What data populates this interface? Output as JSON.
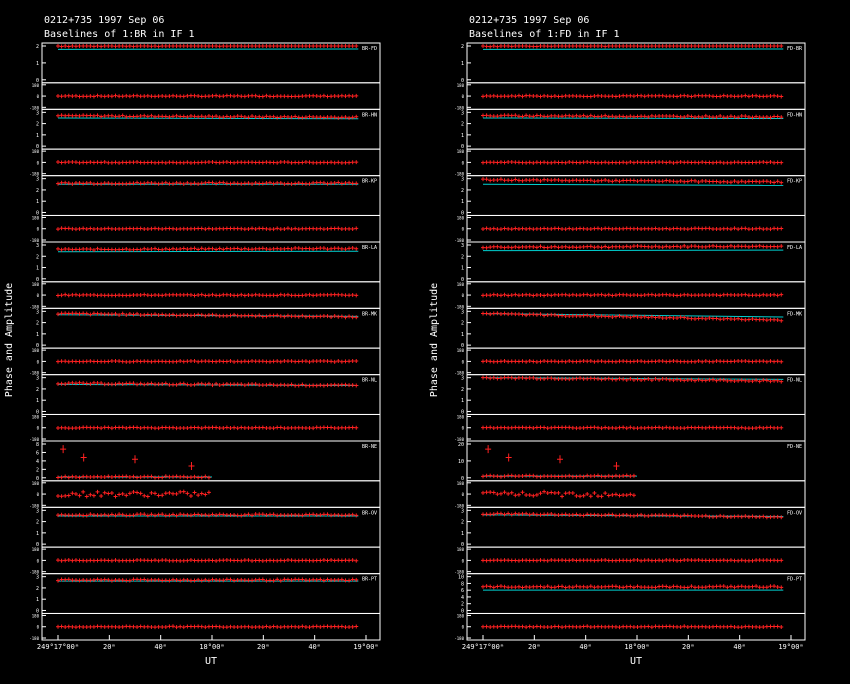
{
  "chart_data": [
    {
      "type": "line",
      "title": "0212+735  1997 Sep 06",
      "subtitle": "Baselines of 1:BR in IF 1",
      "ylabel": "Phase and Amplitude",
      "xlabel": "UT",
      "x_ticks": [
        "249°17°00ᵐ",
        "20ᵐ",
        "40ᵐ",
        "18°00ᵐ",
        "20ᵐ",
        "40ᵐ",
        "19°00ᵐ"
      ],
      "baselines": [
        {
          "label": "BR-FD",
          "amp_ticks": [
            "2",
            "1",
            "0"
          ],
          "phase_ticks": [
            "180",
            "0",
            "-180"
          ],
          "amp": 2.0,
          "amp_ref": 1.8,
          "amp_trend": 0.05,
          "gap": null
        },
        {
          "label": "BR-HN",
          "amp_ticks": [
            "3",
            "2",
            "1",
            "0"
          ],
          "phase_ticks": [
            "180",
            "0",
            "-180"
          ],
          "amp": 2.7,
          "amp_ref": 2.5,
          "amp_trend": -0.15,
          "gap": null
        },
        {
          "label": "BR-KP",
          "amp_ticks": [
            "3",
            "2",
            "1",
            "0"
          ],
          "phase_ticks": [
            "180",
            "0",
            "-180"
          ],
          "amp": 2.6,
          "amp_ref": 2.5,
          "amp_trend": 0.0,
          "gap": null
        },
        {
          "label": "BR-LA",
          "amp_ticks": [
            "3",
            "2",
            "1",
            "0"
          ],
          "phase_ticks": [
            "180",
            "0",
            "-180"
          ],
          "amp": 2.6,
          "amp_ref": 2.4,
          "amp_trend": 0.1,
          "gap": null
        },
        {
          "label": "BR-MK",
          "amp_ticks": [
            "3",
            "2",
            "1",
            "0"
          ],
          "phase_ticks": [
            "180",
            "0",
            "-180"
          ],
          "amp": 2.8,
          "amp_ref": 2.7,
          "amp_trend": -0.3,
          "gap": null
        },
        {
          "label": "BR-NL",
          "amp_ticks": [
            "3",
            "2",
            "1",
            "0"
          ],
          "phase_ticks": [
            "180",
            "0",
            "-180"
          ],
          "amp": 2.5,
          "amp_ref": 2.4,
          "amp_trend": -0.2,
          "gap": null
        },
        {
          "label": "BR-NE",
          "amp_ticks": [
            "8",
            "6",
            "4",
            "2",
            "0"
          ],
          "phase_ticks": [
            "180",
            "0",
            "-180"
          ],
          "amp": 0.2,
          "amp_ref": 0.2,
          "amp_trend": 0.0,
          "gap": "after_18h"
        },
        {
          "label": "BR-OV",
          "amp_ticks": [
            "3",
            "2",
            "1",
            "0"
          ],
          "phase_ticks": [
            "180",
            "0",
            "-180"
          ],
          "amp": 2.6,
          "amp_ref": 2.5,
          "amp_trend": 0.0,
          "gap": null
        },
        {
          "label": "BR-PT",
          "amp_ticks": [
            "3",
            "2",
            "1",
            "0"
          ],
          "phase_ticks": [
            "180",
            "0",
            "-180"
          ],
          "amp": 2.7,
          "amp_ref": 2.6,
          "amp_trend": 0.0,
          "gap": null
        }
      ]
    },
    {
      "type": "line",
      "title": "0212+735  1997 Sep 06",
      "subtitle": "Baselines of 1:FD in IF 1",
      "ylabel": "Phase and Amplitude",
      "xlabel": "UT",
      "x_ticks": [
        "249°17°00ᵐ",
        "20ᵐ",
        "40ᵐ",
        "18°00ᵐ",
        "20ᵐ",
        "40ᵐ",
        "19°00ᵐ"
      ],
      "baselines": [
        {
          "label": "FD-BR",
          "amp_ticks": [
            "2",
            "1",
            "0"
          ],
          "phase_ticks": [
            "180",
            "0",
            "-180"
          ],
          "amp": 2.0,
          "amp_ref": 1.8,
          "amp_trend": 0.05,
          "gap": null
        },
        {
          "label": "FD-HN",
          "amp_ticks": [
            "3",
            "2",
            "1",
            "0"
          ],
          "phase_ticks": [
            "180",
            "0",
            "-180"
          ],
          "amp": 2.7,
          "amp_ref": 2.5,
          "amp_trend": -0.1,
          "gap": null
        },
        {
          "label": "FD-KP",
          "amp_ticks": [
            "3",
            "2",
            "1",
            "0"
          ],
          "phase_ticks": [
            "180",
            "0",
            "-180"
          ],
          "amp": 2.9,
          "amp_ref": 2.5,
          "amp_trend": -0.2,
          "gap": null
        },
        {
          "label": "FD-LA",
          "amp_ticks": [
            "3",
            "2",
            "1",
            "0"
          ],
          "phase_ticks": [
            "180",
            "0",
            "-180"
          ],
          "amp": 2.8,
          "amp_ref": 2.5,
          "amp_trend": 0.1,
          "gap": null
        },
        {
          "label": "FD-MK",
          "amp_ticks": [
            "3",
            "2",
            "1",
            "0"
          ],
          "phase_ticks": [
            "180",
            "0",
            "-180"
          ],
          "amp": 2.8,
          "amp_ref": 2.8,
          "amp_trend": -0.6,
          "gap": null
        },
        {
          "label": "FD-NL",
          "amp_ticks": [
            "3",
            "2",
            "1",
            "0"
          ],
          "phase_ticks": [
            "180",
            "0",
            "-180"
          ],
          "amp": 3.0,
          "amp_ref": 3.0,
          "amp_trend": -0.3,
          "gap": null
        },
        {
          "label": "FD-NE",
          "amp_ticks": [
            "20",
            "10",
            "0"
          ],
          "phase_ticks": [
            "180",
            "0",
            "-180"
          ],
          "amp": 1.0,
          "amp_ref": 1.0,
          "amp_trend": 0.0,
          "gap": "after_18h"
        },
        {
          "label": "FD-OV",
          "amp_ticks": [
            "3",
            "2",
            "1",
            "0"
          ],
          "phase_ticks": [
            "180",
            "0",
            "-180"
          ],
          "amp": 2.7,
          "amp_ref": 2.6,
          "amp_trend": -0.3,
          "gap": null
        },
        {
          "label": "FD-PT",
          "amp_ticks": [
            "10",
            "8",
            "6",
            "4",
            "2",
            "0"
          ],
          "phase_ticks": [
            "180",
            "0",
            "-180"
          ],
          "amp": 7.0,
          "amp_ref": 6.0,
          "amp_trend": 0.0,
          "gap": null
        }
      ]
    }
  ],
  "colors": {
    "data": "#ff2020",
    "model": "#00d0d0",
    "frame": "#ffffff"
  }
}
